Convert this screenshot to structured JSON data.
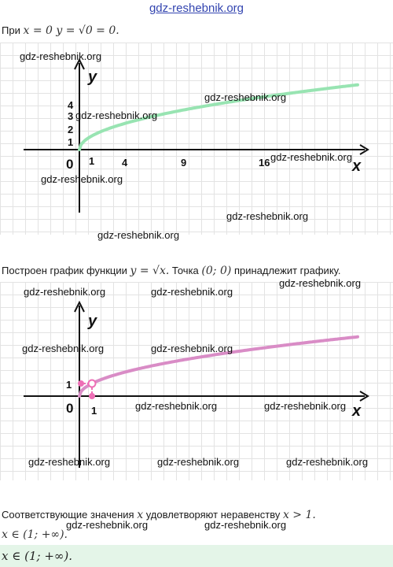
{
  "header": {
    "site": "gdz-reshebnik.org"
  },
  "line1": {
    "prefix": "При",
    "math": "x = 0  y = √0 = 0."
  },
  "graph1": {
    "x_axis": "x",
    "y_axis": "y",
    "origin": "0",
    "x_ticks": [
      "1",
      "4",
      "9",
      "16"
    ],
    "y_ticks": [
      "1",
      "2",
      "3",
      "4"
    ],
    "curve_color": "#98e4b2",
    "watermarks": [
      "gdz-reshebnik.org",
      "gdz-reshebnik.org",
      "gdz-reshebnik.org",
      "gdz-reshebnik.org",
      "gdz-reshebnik.org",
      "gdz-reshebnik.org",
      "gdz-reshebnik.org"
    ]
  },
  "line2": {
    "prefix": "Построен график функции",
    "math": "y = √x.",
    "middle": "Точка",
    "point": "(0;  0)",
    "suffix": "принадлежит графику."
  },
  "graph2": {
    "x_axis": "x",
    "y_axis": "y",
    "origin": "0",
    "x_ticks": [
      "1"
    ],
    "y_ticks": [
      "1"
    ],
    "curve_color": "#d98cc6",
    "marker_color": "#ee6fb6",
    "watermarks": [
      "gdz-reshebnik.org",
      "gdz-reshebnik.org",
      "gdz-reshebnik.org",
      "gdz-reshebnik.org",
      "gdz-reshebnik.org",
      "gdz-reshebnik.org",
      "gdz-reshebnik.org",
      "gdz-reshebnik.org",
      "gdz-reshebnik.org",
      "gdz-reshebnik.org"
    ]
  },
  "line3": {
    "prefix": "Соответствующие значения",
    "var": "x",
    "middle": "удовлетворяют неравенству",
    "math": "x  >  1."
  },
  "line4": {
    "math": "x ∈ (1;  +∞)."
  },
  "answer": {
    "math": "x ∈ (1;  +∞)."
  },
  "bottom_watermarks": [
    "gdz-reshebnik.org",
    "gdz-reshebnik.org"
  ]
}
